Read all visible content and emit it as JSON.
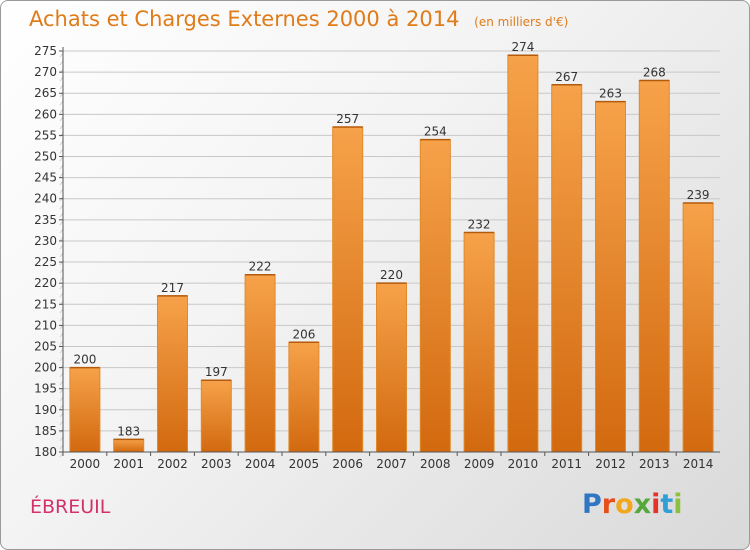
{
  "title": "Achats et Charges Externes 2000 à 2014",
  "subtitle": "(en milliers d'€)",
  "commune": "ÉBREUIL",
  "logo": {
    "letters": [
      "P",
      "r",
      "o",
      "x",
      "i",
      "t",
      "i"
    ],
    "colors": [
      "#2f76c4",
      "#e84e1b",
      "#f2a81d",
      "#55a83a",
      "#e6332a",
      "#2f9fd8",
      "#8cc03f"
    ]
  },
  "colors": {
    "bar_top": "#f6a24a",
    "bar_bottom": "#d2690f",
    "title": "#e07b1a",
    "commune": "#d4316b",
    "grid": "#c8c8c8"
  },
  "chart_data": {
    "type": "bar",
    "title": "Achats et Charges Externes 2000 à 2014",
    "subtitle": "(en milliers d'€)",
    "categories": [
      "2000",
      "2001",
      "2002",
      "2003",
      "2004",
      "2005",
      "2006",
      "2007",
      "2008",
      "2009",
      "2010",
      "2011",
      "2012",
      "2013",
      "2014"
    ],
    "values": [
      200,
      183,
      217,
      197,
      222,
      206,
      257,
      220,
      254,
      232,
      274,
      267,
      263,
      268,
      239
    ],
    "ylim": [
      180,
      275
    ],
    "yticks": [
      180,
      185,
      190,
      195,
      200,
      205,
      210,
      215,
      220,
      225,
      230,
      235,
      240,
      245,
      250,
      255,
      260,
      265,
      270,
      275
    ],
    "grid": true,
    "xlabel": "",
    "ylabel": ""
  }
}
